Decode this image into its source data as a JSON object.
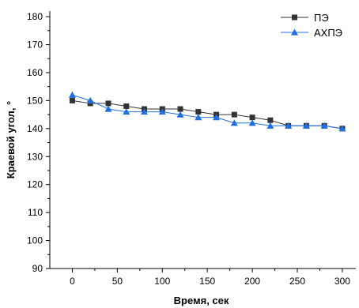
{
  "chart_data": {
    "type": "line",
    "title": "",
    "xlabel": "Время, сек",
    "ylabel": "Краевой угол, °",
    "xlim": [
      -25,
      315
    ],
    "ylim": [
      90,
      182
    ],
    "x_ticks": [
      0,
      50,
      100,
      150,
      200,
      250,
      300
    ],
    "y_ticks": [
      90,
      100,
      110,
      120,
      130,
      140,
      150,
      160,
      170,
      180
    ],
    "grid": false,
    "legend_position": "top-right",
    "series": [
      {
        "name": "ПЭ",
        "marker": "square",
        "color": "#333333",
        "x": [
          0,
          20,
          40,
          60,
          80,
          100,
          120,
          140,
          160,
          180,
          200,
          220,
          240,
          260,
          280,
          300
        ],
        "y": [
          150,
          149,
          149,
          148,
          147,
          147,
          147,
          146,
          145,
          145,
          144,
          143,
          141,
          141,
          141,
          140
        ]
      },
      {
        "name": "АХПЭ",
        "marker": "triangle-up",
        "color": "#1f6fe0",
        "x": [
          0,
          20,
          40,
          60,
          80,
          100,
          120,
          140,
          160,
          180,
          200,
          220,
          240,
          260,
          280,
          300
        ],
        "y": [
          152,
          150,
          147,
          146,
          146,
          146,
          145,
          144,
          144,
          142,
          142,
          141,
          141,
          141,
          141,
          140
        ]
      }
    ]
  }
}
